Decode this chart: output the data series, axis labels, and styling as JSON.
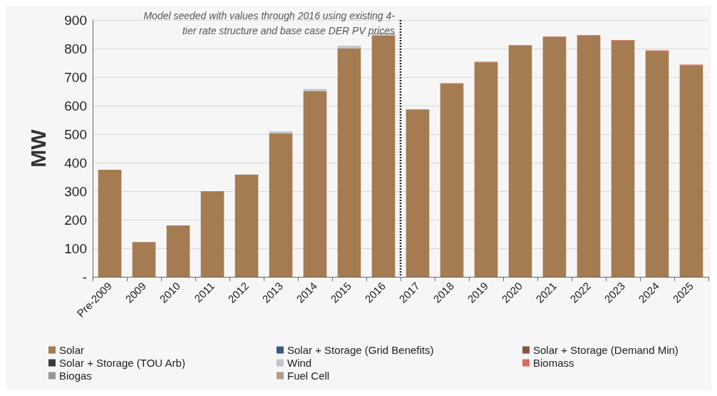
{
  "chart_data": {
    "type": "bar",
    "stacked": true,
    "ylabel": "MW",
    "categories": [
      "Pre-2009",
      "2009",
      "2010",
      "2011",
      "2012",
      "2013",
      "2014",
      "2015",
      "2016",
      "2017",
      "2018",
      "2019",
      "2020",
      "2021",
      "2022",
      "2023",
      "2024",
      "2025"
    ],
    "series": [
      {
        "name": "Solar",
        "color": "#a57b51",
        "values": [
          375,
          122,
          180,
          300,
          358,
          503,
          650,
          800,
          845,
          585,
          677,
          752,
          810,
          840,
          845,
          828,
          792,
          742
        ]
      },
      {
        "name": "Solar + Storage (Grid Benefits)",
        "color": "#3d5a80",
        "values": [
          0,
          0,
          0,
          0,
          0,
          0,
          0,
          0,
          0,
          0,
          0,
          0,
          0,
          0,
          0,
          0,
          0,
          0
        ]
      },
      {
        "name": "Solar + Storage (Demand Min)",
        "color": "#8e4f45",
        "values": [
          0,
          0,
          0,
          0,
          0,
          0,
          0,
          0,
          0,
          0,
          0,
          0,
          0,
          0,
          0,
          0,
          0,
          0
        ]
      },
      {
        "name": "Solar + Storage (TOU Arb)",
        "color": "#3a3a3a",
        "values": [
          0,
          0,
          0,
          0,
          0,
          0,
          0,
          0,
          0,
          0,
          0,
          0,
          0,
          0,
          0,
          0,
          0,
          0
        ]
      },
      {
        "name": "Wind",
        "color": "#c4c6cf",
        "values": [
          0,
          0,
          0,
          0,
          0,
          7,
          8,
          10,
          10,
          0,
          0,
          0,
          0,
          0,
          0,
          0,
          0,
          0
        ]
      },
      {
        "name": "Biomass",
        "color": "#e0695a",
        "values": [
          0,
          0,
          0,
          0,
          0,
          0,
          0,
          0,
          0,
          2,
          2,
          2,
          2,
          2,
          2,
          2,
          2,
          2
        ]
      },
      {
        "name": "Biogas",
        "color": "#959595",
        "values": [
          0,
          0,
          0,
          0,
          0,
          0,
          0,
          0,
          0,
          0,
          0,
          0,
          0,
          0,
          0,
          0,
          0,
          0
        ]
      },
      {
        "name": "Fuel Cell",
        "color": "#b39a88",
        "values": [
          0,
          0,
          0,
          0,
          0,
          0,
          0,
          0,
          0,
          0,
          0,
          0,
          0,
          0,
          0,
          0,
          0,
          0
        ]
      }
    ],
    "ylim": [
      0,
      900
    ],
    "yticks": [
      {
        "value": 0,
        "label": "-"
      },
      100,
      200,
      300,
      400,
      500,
      600,
      700,
      800,
      900
    ],
    "grid": "y",
    "legend": "bottom",
    "ref_lines": [
      {
        "axis": "x",
        "value": "2016",
        "line_style": "dotted",
        "color": "#222222"
      }
    ],
    "annotations": [
      "Model seeded with values through 2016 using existing 4-\ntier rate structure and base case DER PV prices"
    ]
  }
}
